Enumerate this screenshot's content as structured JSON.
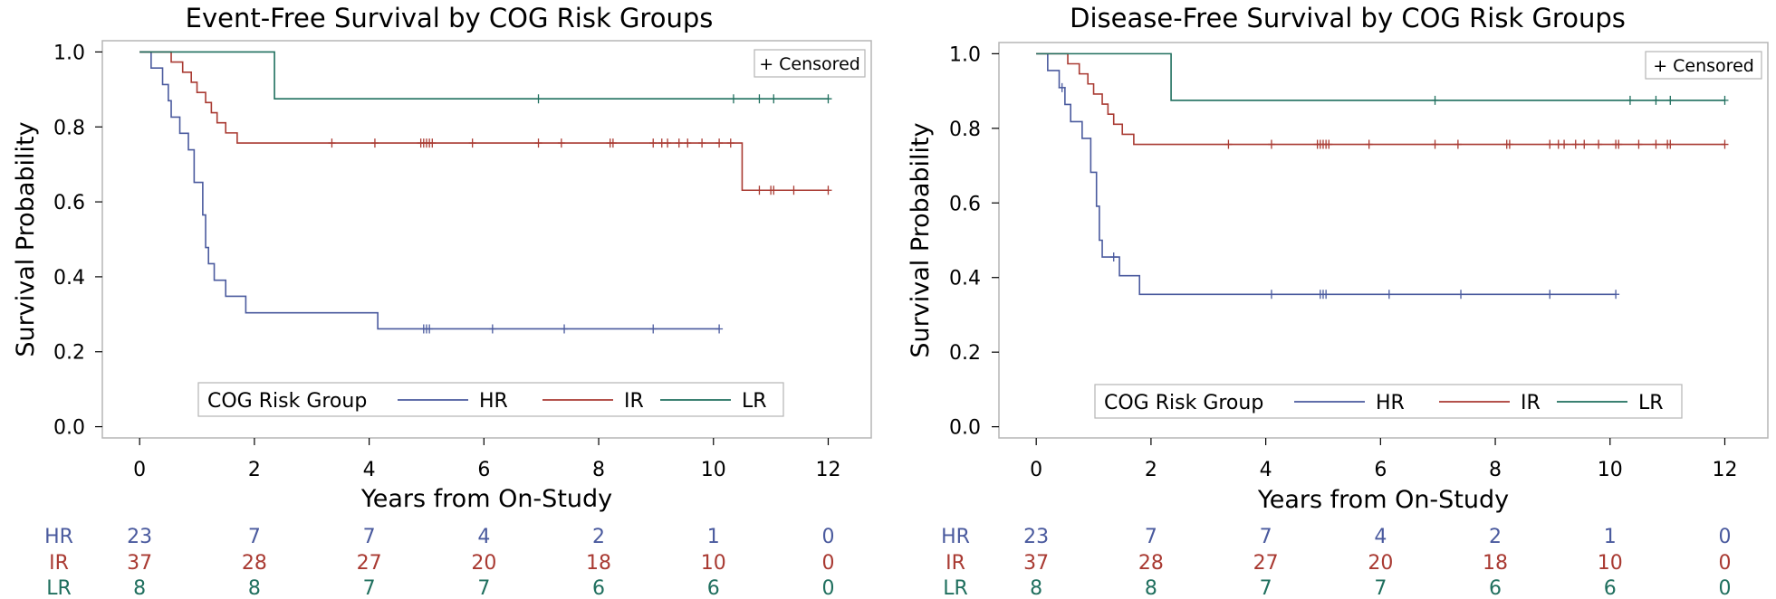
{
  "colors": {
    "HR": "#4a5a9e",
    "IR": "#a93a32",
    "LR": "#1f6f5e",
    "frame": "#b5b5b5"
  },
  "chart_data": [
    {
      "type": "line",
      "id": "efs",
      "title": "Event-Free Survival by COG Risk Groups",
      "xlabel": "Years from On-Study",
      "ylabel": "Survival Probability",
      "xlim": [
        -0.65,
        12.75
      ],
      "ylim": [
        -0.03,
        1.03
      ],
      "xticks": [
        0,
        2,
        4,
        6,
        8,
        10,
        12
      ],
      "xtick_labels": [
        "0",
        "2",
        "4",
        "6",
        "8",
        "10",
        "12"
      ],
      "yticks": [
        0.0,
        0.2,
        0.4,
        0.6,
        0.8,
        1.0
      ],
      "ytick_labels": [
        "0.0",
        "0.2",
        "0.4",
        "0.6",
        "0.8",
        "1.0"
      ],
      "censored_label": "+ Censored",
      "legend": {
        "title": "COG Risk Group",
        "placement": "bottom-center",
        "entries": [
          "HR",
          "IR",
          "LR"
        ]
      },
      "series": [
        {
          "name": "HR",
          "steps": [
            [
              0,
              1.0
            ],
            [
              0.2,
              0.957
            ],
            [
              0.4,
              0.913
            ],
            [
              0.5,
              0.87
            ],
            [
              0.55,
              0.826
            ],
            [
              0.7,
              0.783
            ],
            [
              0.85,
              0.739
            ],
            [
              0.95,
              0.652
            ],
            [
              1.1,
              0.565
            ],
            [
              1.15,
              0.478
            ],
            [
              1.2,
              0.435
            ],
            [
              1.3,
              0.391
            ],
            [
              1.5,
              0.348
            ],
            [
              1.85,
              0.304
            ],
            [
              4.15,
              0.261
            ],
            [
              10.1,
              0.261
            ]
          ],
          "censored": [
            4.95,
            5.0,
            5.05,
            6.15,
            7.4,
            8.95,
            10.1
          ]
        },
        {
          "name": "IR",
          "steps": [
            [
              0,
              1.0
            ],
            [
              0.55,
              0.973
            ],
            [
              0.75,
              0.946
            ],
            [
              0.9,
              0.919
            ],
            [
              1.0,
              0.892
            ],
            [
              1.15,
              0.865
            ],
            [
              1.25,
              0.838
            ],
            [
              1.35,
              0.811
            ],
            [
              1.5,
              0.784
            ],
            [
              1.7,
              0.757
            ],
            [
              10.5,
              0.631
            ],
            [
              12.0,
              0.631
            ]
          ],
          "censored": [
            3.35,
            4.1,
            4.9,
            4.95,
            5.0,
            5.05,
            5.1,
            5.8,
            6.95,
            7.35,
            8.2,
            8.25,
            8.95,
            9.1,
            9.2,
            9.4,
            9.55,
            9.8,
            10.1,
            10.3,
            10.8,
            11.0,
            11.05,
            11.4,
            12.0
          ],
          "censored_values": [
            0.757,
            0.757,
            0.757,
            0.757,
            0.757,
            0.757,
            0.757,
            0.757,
            0.757,
            0.757,
            0.757,
            0.757,
            0.757,
            0.757,
            0.757,
            0.757,
            0.757,
            0.757,
            0.757,
            0.757,
            0.631,
            0.631,
            0.631,
            0.631,
            0.631
          ]
        },
        {
          "name": "LR",
          "steps": [
            [
              0,
              1.0
            ],
            [
              2.35,
              0.875
            ],
            [
              12.0,
              0.875
            ]
          ],
          "censored": [
            6.95,
            10.35,
            10.8,
            11.05,
            12.0
          ]
        }
      ],
      "at_risk": {
        "times": [
          0,
          2,
          4,
          6,
          8,
          10,
          12
        ],
        "rows": [
          {
            "group": "HR",
            "counts": [
              "23",
              "7",
              "7",
              "4",
              "2",
              "1",
              "0"
            ]
          },
          {
            "group": "IR",
            "counts": [
              "37",
              "28",
              "27",
              "20",
              "18",
              "10",
              "0"
            ]
          },
          {
            "group": "LR",
            "counts": [
              "8",
              "8",
              "7",
              "7",
              "6",
              "6",
              "0"
            ]
          }
        ]
      }
    },
    {
      "type": "line",
      "id": "dfs",
      "title": "Disease-Free Survival by COG Risk Groups",
      "xlabel": "Years from On-Study",
      "ylabel": "Survival Probability",
      "xlim": [
        -0.65,
        12.75
      ],
      "ylim": [
        -0.03,
        1.03
      ],
      "xticks": [
        0,
        2,
        4,
        6,
        8,
        10,
        12
      ],
      "xtick_labels": [
        "0",
        "2",
        "4",
        "6",
        "8",
        "10",
        "12"
      ],
      "yticks": [
        0.0,
        0.2,
        0.4,
        0.6,
        0.8,
        1.0
      ],
      "ytick_labels": [
        "0.0",
        "0.2",
        "0.4",
        "0.6",
        "0.8",
        "1.0"
      ],
      "censored_label": "+ Censored",
      "legend": {
        "title": "COG Risk Group",
        "placement": "bottom-center",
        "entries": [
          "HR",
          "IR",
          "LR"
        ]
      },
      "series": [
        {
          "name": "HR",
          "steps": [
            [
              0,
              1.0
            ],
            [
              0.2,
              0.955
            ],
            [
              0.4,
              0.909
            ],
            [
              0.5,
              0.864
            ],
            [
              0.6,
              0.818
            ],
            [
              0.8,
              0.773
            ],
            [
              0.95,
              0.682
            ],
            [
              1.05,
              0.591
            ],
            [
              1.1,
              0.5
            ],
            [
              1.15,
              0.455
            ],
            [
              1.45,
              0.405
            ],
            [
              1.8,
              0.355
            ],
            [
              10.1,
              0.355
            ]
          ],
          "censored": [
            0.45,
            1.35,
            4.1,
            4.95,
            5.0,
            5.05,
            6.15,
            7.4,
            8.95,
            10.1
          ],
          "censored_values": [
            0.909,
            0.455,
            0.355,
            0.355,
            0.355,
            0.355,
            0.355,
            0.355,
            0.355,
            0.355
          ]
        },
        {
          "name": "IR",
          "steps": [
            [
              0,
              1.0
            ],
            [
              0.55,
              0.973
            ],
            [
              0.75,
              0.946
            ],
            [
              0.9,
              0.919
            ],
            [
              1.0,
              0.892
            ],
            [
              1.15,
              0.865
            ],
            [
              1.25,
              0.838
            ],
            [
              1.35,
              0.811
            ],
            [
              1.5,
              0.784
            ],
            [
              1.7,
              0.757
            ],
            [
              12.0,
              0.757
            ]
          ],
          "censored": [
            3.35,
            4.1,
            4.9,
            4.95,
            5.0,
            5.05,
            5.1,
            5.8,
            6.95,
            7.35,
            8.2,
            8.25,
            8.95,
            9.1,
            9.2,
            9.4,
            9.55,
            9.8,
            10.1,
            10.15,
            10.5,
            10.8,
            11.0,
            11.05,
            12.0
          ]
        },
        {
          "name": "LR",
          "steps": [
            [
              0,
              1.0
            ],
            [
              2.35,
              0.875
            ],
            [
              12.0,
              0.875
            ]
          ],
          "censored": [
            6.95,
            10.35,
            10.8,
            11.05,
            12.0
          ]
        }
      ],
      "at_risk": {
        "times": [
          0,
          2,
          4,
          6,
          8,
          10,
          12
        ],
        "rows": [
          {
            "group": "HR",
            "counts": [
              "23",
              "7",
              "7",
              "4",
              "2",
              "1",
              "0"
            ]
          },
          {
            "group": "IR",
            "counts": [
              "37",
              "28",
              "27",
              "20",
              "18",
              "10",
              "0"
            ]
          },
          {
            "group": "LR",
            "counts": [
              "8",
              "8",
              "7",
              "7",
              "6",
              "6",
              "0"
            ]
          }
        ]
      }
    }
  ]
}
